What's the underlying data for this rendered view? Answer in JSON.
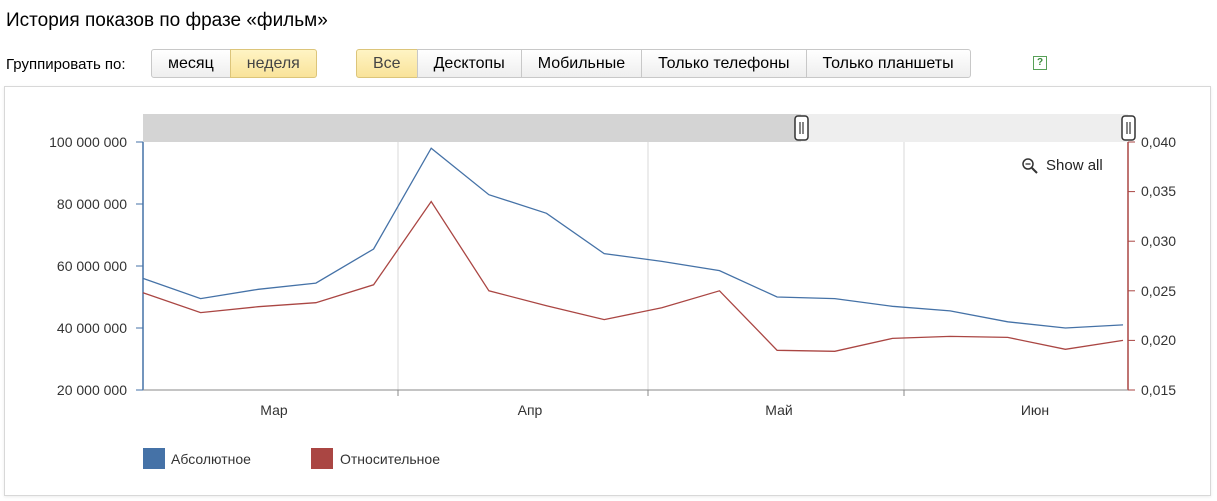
{
  "title": "История показов по фразе «фильм»",
  "group_by": {
    "label": "Группировать по:",
    "options": [
      {
        "label": "месяц",
        "active": false
      },
      {
        "label": "неделя",
        "active": true
      }
    ]
  },
  "device_filter": {
    "options": [
      {
        "label": "Все",
        "active": true
      },
      {
        "label": "Десктопы",
        "active": false
      },
      {
        "label": "Мобильные",
        "active": false
      },
      {
        "label": "Только телефоны",
        "active": false
      },
      {
        "label": "Только планшеты",
        "active": false
      }
    ]
  },
  "help": {
    "label": "?"
  },
  "show_all_label": "Show all",
  "colors": {
    "absolute": "#4572a7",
    "relative": "#aa4643",
    "accent_button": "#f9e39a"
  },
  "chart_data": {
    "type": "line",
    "x_labels": [
      "Мар",
      "Апр",
      "Май",
      "Июн"
    ],
    "x": [
      "2015-02-16",
      "2015-02-23",
      "2015-03-02",
      "2015-03-09",
      "2015-03-16",
      "2015-03-23",
      "2015-03-30",
      "2015-04-06",
      "2015-04-13",
      "2015-04-20",
      "2015-04-27",
      "2015-05-04",
      "2015-05-11",
      "2015-05-18",
      "2015-05-25",
      "2015-06-01",
      "2015-06-08",
      "2015-06-15"
    ],
    "series": [
      {
        "name": "Абсолютное",
        "axis": "left",
        "color": "#4572a7",
        "values": [
          56000000,
          49500000,
          52500000,
          54500000,
          65500000,
          98000000,
          83000000,
          77000000,
          64000000,
          61500000,
          58500000,
          50000000,
          49500000,
          47000000,
          45500000,
          42000000,
          40000000,
          41000000
        ]
      },
      {
        "name": "Относительное",
        "axis": "right",
        "color": "#aa4643",
        "values": [
          0.0248,
          0.0228,
          0.0234,
          0.0238,
          0.0256,
          0.034,
          0.025,
          0.0235,
          0.0221,
          0.0233,
          0.025,
          0.019,
          0.0189,
          0.0202,
          0.0204,
          0.0203,
          0.0191,
          0.02
        ]
      }
    ],
    "y_left": {
      "min": 20000000,
      "max": 100000000,
      "ticks": [
        "20 000 000",
        "40 000 000",
        "60 000 000",
        "80 000 000",
        "100 000 000"
      ]
    },
    "y_right": {
      "min": 0.015,
      "max": 0.04,
      "ticks": [
        "0,015",
        "0,020",
        "0,025",
        "0,030",
        "0,035",
        "0,040"
      ]
    },
    "grid": true,
    "legend_position": "bottom-left"
  }
}
